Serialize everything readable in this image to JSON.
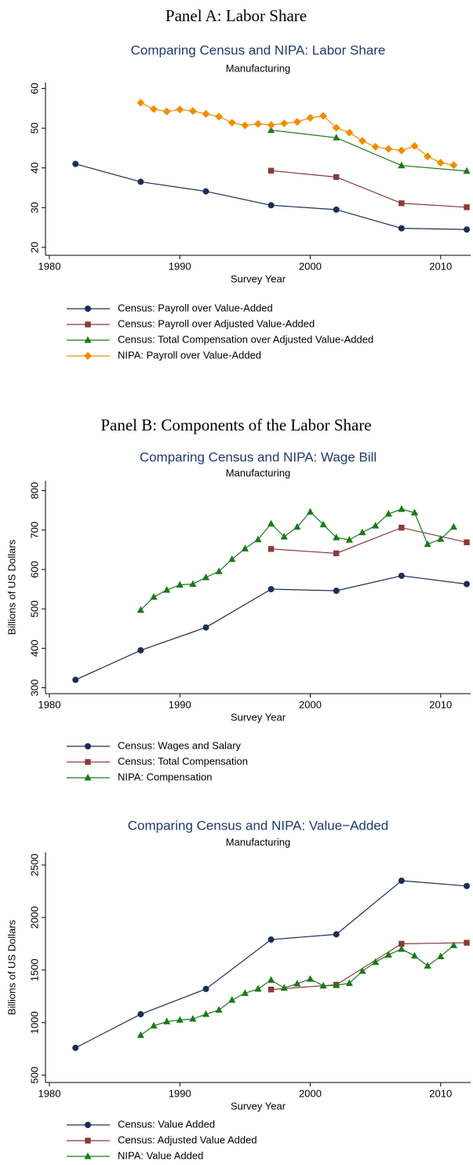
{
  "chart_data": [
    {
      "type": "line",
      "heading": "Panel A: Labor Share",
      "title": "Comparing Census and NIPA: Labor Share",
      "subtitle": "Manufacturing",
      "xlabel": "Survey Year",
      "xlim": [
        1979.7,
        2012.3
      ],
      "xticks": [
        1980,
        1990,
        2000,
        2010
      ],
      "ylim": [
        18,
        61.5
      ],
      "yticks": [
        20,
        30,
        40,
        50,
        60
      ],
      "series": [
        {
          "name": "Census: Payroll over Value-Added",
          "color": "#1c2d57",
          "marker": "circle",
          "x": [
            1982,
            1987,
            1992,
            1997,
            2002,
            2007,
            2012
          ],
          "values": [
            41,
            36.5,
            34.1,
            30.6,
            29.5,
            24.8,
            24.5
          ]
        },
        {
          "name": "Census: Payroll over Adjusted Value-Added",
          "color": "#8b3a3a",
          "marker": "square",
          "x": [
            1997,
            2002,
            2007,
            2012
          ],
          "values": [
            39.3,
            37.7,
            31.1,
            30.1
          ]
        },
        {
          "name": "Census: Total Compensation over Adjusted Value-Added",
          "color": "#1a7a1a",
          "marker": "triangle",
          "x": [
            1997,
            2002,
            2007,
            2012
          ],
          "values": [
            49.5,
            47.6,
            40.6,
            39.2
          ]
        },
        {
          "name": "NIPA: Payroll over Value-Added",
          "color": "#f28c00",
          "marker": "diamond",
          "x": [
            1987,
            1988,
            1989,
            1990,
            1991,
            1992,
            1993,
            1994,
            1995,
            1996,
            1997,
            1998,
            1999,
            2000,
            2001,
            2002,
            2003,
            2004,
            2005,
            2006,
            2007,
            2008,
            2009,
            2010,
            2011
          ],
          "values": [
            56.4,
            54.8,
            54.2,
            54.7,
            54.3,
            53.6,
            52.9,
            51.4,
            50.7,
            51.1,
            50.8,
            51.2,
            51.6,
            52.6,
            53.1,
            50.1,
            48.9,
            46.8,
            45.3,
            44.8,
            44.4,
            45.5,
            42.9,
            41.3,
            40.7
          ]
        }
      ]
    },
    {
      "type": "line",
      "heading": "Panel B: Components of the Labor Share",
      "title": "Comparing Census and NIPA: Wage Bill",
      "subtitle": "Manufacturing",
      "xlabel": "Survey Year",
      "ylabel": "Billions of US Dollars",
      "xlim": [
        1979.7,
        2012.3
      ],
      "xticks": [
        1980,
        1990,
        2000,
        2010
      ],
      "ylim": [
        285,
        825
      ],
      "yticks": [
        300,
        400,
        500,
        600,
        700,
        800
      ],
      "series": [
        {
          "name": "Census: Wages and Salary",
          "color": "#1c2d57",
          "marker": "circle",
          "x": [
            1982,
            1987,
            1992,
            1997,
            2002,
            2007,
            2012
          ],
          "values": [
            320,
            395,
            453,
            550,
            546,
            584,
            563
          ]
        },
        {
          "name": "Census: Total Compensation",
          "color": "#8b3a3a",
          "marker": "square",
          "x": [
            1997,
            2002,
            2007,
            2012
          ],
          "values": [
            652,
            641,
            706,
            669
          ]
        },
        {
          "name": "NIPA: Compensation",
          "color": "#1a7a1a",
          "marker": "triangle",
          "x": [
            1987,
            1988,
            1989,
            1990,
            1991,
            1992,
            1993,
            1994,
            1995,
            1996,
            1997,
            1998,
            1999,
            2000,
            2001,
            2002,
            2003,
            2004,
            2005,
            2006,
            2007,
            2008,
            2009,
            2010,
            2011
          ],
          "values": [
            497,
            530,
            548,
            561,
            563,
            580,
            595,
            626,
            653,
            676,
            716,
            683,
            708,
            746,
            714,
            681,
            675,
            694,
            711,
            741,
            753,
            744,
            664,
            677,
            708
          ]
        }
      ]
    },
    {
      "type": "line",
      "title": "Comparing Census and NIPA: Value−Added",
      "subtitle": "Manufacturing",
      "xlabel": "Survey Year",
      "ylabel": "Billions of US Dollars",
      "xlim": [
        1979.7,
        2012.3
      ],
      "xticks": [
        1980,
        1990,
        2000,
        2010
      ],
      "ylim": [
        430,
        2620
      ],
      "yticks": [
        500,
        1000,
        1500,
        2000,
        2500
      ],
      "series": [
        {
          "name": "Census: Value Added",
          "color": "#1c2d57",
          "marker": "circle",
          "x": [
            1982,
            1987,
            1992,
            1997,
            2002,
            2007,
            2012
          ],
          "values": [
            760,
            1080,
            1320,
            1790,
            1840,
            2350,
            2300
          ]
        },
        {
          "name": "Census: Adjusted Value Added",
          "color": "#8b3a3a",
          "marker": "square",
          "x": [
            1997,
            2002,
            2007,
            2012
          ],
          "values": [
            1315,
            1360,
            1750,
            1760
          ]
        },
        {
          "name": "NIPA: Value Added",
          "color": "#1a7a1a",
          "marker": "triangle",
          "x": [
            1987,
            1988,
            1989,
            1990,
            1991,
            1992,
            1993,
            1994,
            1995,
            1996,
            1997,
            1998,
            1999,
            2000,
            2001,
            2002,
            2003,
            2004,
            2005,
            2006,
            2007,
            2008,
            2009,
            2010,
            2011
          ],
          "values": [
            880,
            970,
            1010,
            1025,
            1035,
            1080,
            1120,
            1215,
            1280,
            1320,
            1405,
            1330,
            1370,
            1415,
            1350,
            1355,
            1375,
            1490,
            1575,
            1645,
            1700,
            1635,
            1540,
            1630,
            1735
          ]
        }
      ]
    }
  ]
}
